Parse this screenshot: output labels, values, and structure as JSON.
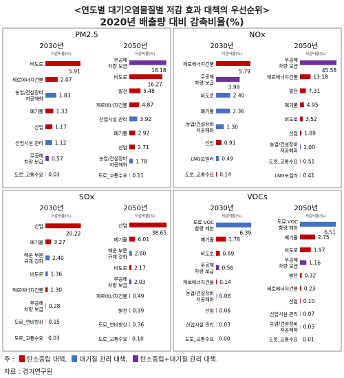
{
  "title": "<연도별 대기오염물질별 저감 효과 대책의 우선순위>",
  "subtitle": "2020년 배출량 대비 감축비율(%)",
  "colors": {
    "red": "#c00000",
    "blue": "#4472c4",
    "purple": "#7030a0"
  },
  "unit_label": "저감비율(%)",
  "legend": {
    "prefix": "주 :",
    "items": [
      {
        "label": "탄소중립 대책,",
        "color": "red"
      },
      {
        "label": "대기질 관리 대책,",
        "color": "blue"
      },
      {
        "label": "탄소중립+대기질 관리 대책.",
        "color": "purple"
      }
    ]
  },
  "source": "자료 : 경기연구원",
  "chart_data": [
    {
      "type": "bar",
      "pollutant": "PM2.5",
      "panels": [
        {
          "year": "2030년",
          "max": 6.5,
          "items": [
            {
              "label": "비도로",
              "value": 5.91,
              "color": "red"
            },
            {
              "label": "제로에너지건물",
              "value": 2.07,
              "color": "red"
            },
            {
              "label": "농업/건설장비 저공해화",
              "value": 1.83,
              "color": "blue"
            },
            {
              "label": "폐기물",
              "value": 1.33,
              "color": "red"
            },
            {
              "label": "산업",
              "value": 1.17,
              "color": "red"
            },
            {
              "label": "산업시설 관리",
              "value": 1.12,
              "color": "blue"
            },
            {
              "label": "무공해 차량 보급",
              "value": 0.57,
              "color": "purple"
            },
            {
              "label": "도로_교통수요",
              "value": 0.03,
              "color": "red"
            }
          ]
        },
        {
          "year": "2050년",
          "max": 19.0,
          "items": [
            {
              "label": "무공해 차량 보급",
              "value": 18.18,
              "color": "purple"
            },
            {
              "label": "비도로",
              "value": 16.27,
              "color": "red"
            },
            {
              "label": "발전",
              "value": 5.48,
              "color": "red"
            },
            {
              "label": "제로에너지건물",
              "value": 4.87,
              "color": "red"
            },
            {
              "label": "산업시설 관리",
              "value": 3.92,
              "color": "blue"
            },
            {
              "label": "폐기물",
              "value": 2.92,
              "color": "red"
            },
            {
              "label": "산업",
              "value": 2.71,
              "color": "red"
            },
            {
              "label": "농업/건설장비 저공해화",
              "value": 1.78,
              "color": "blue"
            },
            {
              "label": "도로_교통수요",
              "value": 0.11,
              "color": "red"
            }
          ]
        }
      ]
    },
    {
      "type": "bar",
      "pollutant": "NOx",
      "panels": [
        {
          "year": "2030년",
          "max": 6.5,
          "items": [
            {
              "label": "제로에너지건물",
              "value": 5.79,
              "color": "red"
            },
            {
              "label": "무공해 차량 보급",
              "value": 3.99,
              "color": "purple"
            },
            {
              "label": "비도로",
              "value": 2.4,
              "color": "blue"
            },
            {
              "label": "폐기물",
              "value": 2.36,
              "color": "blue"
            },
            {
              "label": "농업/건설장비 저공해화",
              "value": 1.3,
              "color": "blue"
            },
            {
              "label": "산업",
              "value": 0.91,
              "color": "red"
            },
            {
              "label": "LNG보일러",
              "value": 0.49,
              "color": "blue"
            },
            {
              "label": "도로_교통수요",
              "value": 0.14,
              "color": "red"
            }
          ]
        },
        {
          "year": "2050년",
          "max": 48.0,
          "items": [
            {
              "label": "무공해 차량 보급",
              "value": 45.58,
              "color": "purple"
            },
            {
              "label": "제로에너지건물",
              "value": 13.18,
              "color": "red"
            },
            {
              "label": "발전",
              "value": 7.31,
              "color": "red"
            },
            {
              "label": "폐기물",
              "value": 4.95,
              "color": "red"
            },
            {
              "label": "비도로",
              "value": 3.52,
              "color": "red"
            },
            {
              "label": "산업",
              "value": 1.89,
              "color": "red"
            },
            {
              "label": "농업/건설장비 저공해화",
              "value": 1.0,
              "color": "blue"
            },
            {
              "label": "도로_교통수요",
              "value": 0.51,
              "color": "red"
            },
            {
              "label": "LNG보일러",
              "value": 0.41,
              "color": "blue"
            }
          ]
        }
      ]
    },
    {
      "type": "bar",
      "pollutant": "SOx",
      "panels": [
        {
          "year": "2030년",
          "max": 22.0,
          "items": [
            {
              "label": "산업",
              "value": 20.22,
              "color": "red"
            },
            {
              "label": "폐기물",
              "value": 3.27,
              "color": "red"
            },
            {
              "label": "해운 부문 규제 강화",
              "value": 2.4,
              "color": "blue"
            },
            {
              "label": "비도로",
              "value": 1.36,
              "color": "blue"
            },
            {
              "label": "제로에너지건물",
              "value": 1.3,
              "color": "red"
            },
            {
              "label": "무공해 차량 보급",
              "value": 0.28,
              "color": "purple"
            },
            {
              "label": "도로_연비향상",
              "value": 0.15,
              "color": "red"
            },
            {
              "label": "도로_교통수요",
              "value": 0.03,
              "color": "red"
            }
          ]
        },
        {
          "year": "2050년",
          "max": 40.0,
          "items": [
            {
              "label": "산업",
              "value": 38.65,
              "color": "red"
            },
            {
              "label": "폐기물",
              "value": 6.01,
              "color": "red"
            },
            {
              "label": "해운 부문 규제 강화",
              "value": 2.6,
              "color": "blue"
            },
            {
              "label": "비도로",
              "value": 2.17,
              "color": "red"
            },
            {
              "label": "무공해 차량 보급",
              "value": 2.03,
              "color": "purple"
            },
            {
              "label": "제로에너지건물",
              "value": 0.49,
              "color": "red"
            },
            {
              "label": "발전",
              "value": 0.39,
              "color": "red"
            },
            {
              "label": "도로_연비향상",
              "value": 0.36,
              "color": "red"
            },
            {
              "label": "도로_교통수요",
              "value": 0.1,
              "color": "red"
            }
          ]
        }
      ]
    },
    {
      "type": "bar",
      "pollutant": "VOCs",
      "panels": [
        {
          "year": "2030년",
          "max": 7.0,
          "items": [
            {
              "label": "도료 VOC 함량 제한",
              "value": 6.39,
              "color": "blue"
            },
            {
              "label": "폐기물",
              "value": 1.78,
              "color": "red"
            },
            {
              "label": "비도로",
              "value": 0.69,
              "color": "red"
            },
            {
              "label": "무공해 차량 보급",
              "value": 0.56,
              "color": "purple"
            },
            {
              "label": "제로에너지건물",
              "value": 0.14,
              "color": "red"
            },
            {
              "label": "농업/건설장비 저공해화",
              "value": 0.08,
              "color": "blue"
            },
            {
              "label": "산업",
              "value": 0.06,
              "color": "red"
            },
            {
              "label": "산업시설 관리",
              "value": 0.03,
              "color": "blue"
            },
            {
              "label": "도로_교통수요",
              "value": 0.0,
              "color": "red"
            }
          ]
        },
        {
          "year": "2050년",
          "max": 7.0,
          "items": [
            {
              "label": "도료 VOC 함량 제한",
              "value": 6.51,
              "color": "blue"
            },
            {
              "label": "폐기물",
              "value": 2.75,
              "color": "red"
            },
            {
              "label": "비도로",
              "value": 1.97,
              "color": "red"
            },
            {
              "label": "무공해 차량 보급",
              "value": 1.16,
              "color": "purple"
            },
            {
              "label": "발전",
              "value": 0.32,
              "color": "red"
            },
            {
              "label": "제로에너지건물",
              "value": 0.23,
              "color": "red"
            },
            {
              "label": "산업",
              "value": 0.1,
              "color": "red"
            },
            {
              "label": "산업시설 관리",
              "value": 0.07,
              "color": "blue"
            },
            {
              "label": "농업/건설장비 저공해화",
              "value": 0.05,
              "color": "blue"
            },
            {
              "label": "도로_교통수요",
              "value": 0.01,
              "color": "red"
            }
          ]
        }
      ]
    }
  ]
}
